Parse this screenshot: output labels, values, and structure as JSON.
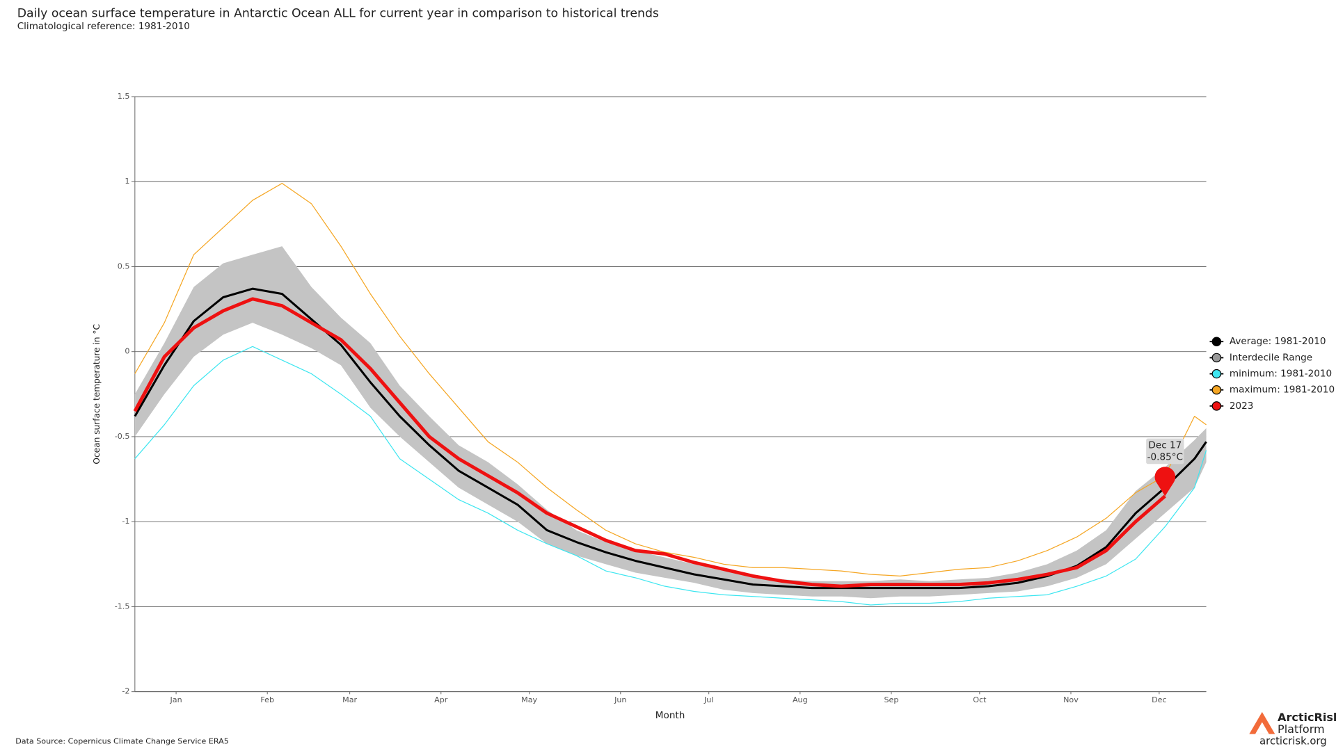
{
  "chart_data": {
    "type": "line",
    "title": "Daily ocean surface temperature in Antarctic Ocean ALL for current year in comparison to historical trends",
    "subtitle": "Climatological reference: 1981-2010",
    "x_label": "Month",
    "y_label": "Ocean surface temperature in °C",
    "source": "Data Source: Copernicus Climate Change Service ERA5",
    "logo": {
      "name_line1": "ArcticRisk",
      "name_line2": "Platform",
      "url": "arcticrisk.org"
    },
    "x": [
      1,
      11,
      21,
      31,
      41,
      51,
      61,
      71,
      81,
      91,
      101,
      111,
      121,
      131,
      141,
      151,
      161,
      171,
      181,
      191,
      201,
      211,
      221,
      231,
      241,
      251,
      261,
      271,
      281,
      291,
      301,
      311,
      321,
      331,
      341,
      351,
      361,
      365
    ],
    "xlim": [
      1,
      365
    ],
    "xticks": [
      {
        "value": 15,
        "label": "Jan"
      },
      {
        "value": 46,
        "label": "Feb"
      },
      {
        "value": 74,
        "label": "Mar"
      },
      {
        "value": 105,
        "label": "Apr"
      },
      {
        "value": 135,
        "label": "May"
      },
      {
        "value": 166,
        "label": "Jun"
      },
      {
        "value": 196,
        "label": "Jul"
      },
      {
        "value": 227,
        "label": "Aug"
      },
      {
        "value": 258,
        "label": "Sep"
      },
      {
        "value": 288,
        "label": "Oct"
      },
      {
        "value": 319,
        "label": "Nov"
      },
      {
        "value": 349,
        "label": "Dec"
      }
    ],
    "ylim": [
      -2,
      1.5
    ],
    "yticks": [
      1.5,
      1,
      0.5,
      0,
      -0.5,
      -1,
      -1.5,
      -2
    ],
    "grid": true,
    "legend": "right",
    "series": [
      {
        "name": "Average: 1981-2010",
        "color": "#000000",
        "values": [
          -0.38,
          -0.08,
          0.18,
          0.32,
          0.37,
          0.34,
          0.19,
          0.04,
          -0.18,
          -0.38,
          -0.55,
          -0.7,
          -0.8,
          -0.9,
          -1.05,
          -1.12,
          -1.18,
          -1.23,
          -1.27,
          -1.31,
          -1.34,
          -1.37,
          -1.38,
          -1.39,
          -1.39,
          -1.39,
          -1.39,
          -1.39,
          -1.39,
          -1.38,
          -1.36,
          -1.32,
          -1.26,
          -1.15,
          -0.95,
          -0.8,
          -0.63,
          -0.53
        ]
      },
      {
        "name": "Interdecile Range",
        "color": "#c4c4c4",
        "marker_color": "#999999",
        "upper": [
          -0.25,
          0.05,
          0.38,
          0.52,
          0.57,
          0.62,
          0.38,
          0.2,
          0.05,
          -0.2,
          -0.38,
          -0.55,
          -0.65,
          -0.78,
          -0.93,
          -1.05,
          -1.12,
          -1.17,
          -1.21,
          -1.25,
          -1.29,
          -1.32,
          -1.34,
          -1.35,
          -1.35,
          -1.35,
          -1.34,
          -1.35,
          -1.34,
          -1.33,
          -1.3,
          -1.25,
          -1.17,
          -1.05,
          -0.82,
          -0.68,
          -0.52,
          -0.45
        ],
        "lower": [
          -0.5,
          -0.25,
          -0.03,
          0.1,
          0.17,
          0.1,
          0.02,
          -0.08,
          -0.33,
          -0.5,
          -0.65,
          -0.8,
          -0.9,
          -1.0,
          -1.13,
          -1.2,
          -1.25,
          -1.3,
          -1.33,
          -1.36,
          -1.4,
          -1.42,
          -1.43,
          -1.44,
          -1.44,
          -1.45,
          -1.44,
          -1.44,
          -1.43,
          -1.42,
          -1.41,
          -1.38,
          -1.33,
          -1.25,
          -1.1,
          -0.95,
          -0.8,
          -0.65
        ]
      },
      {
        "name": "minimum: 1981-2010",
        "color": "#3ee6f0",
        "values": [
          -0.63,
          -0.43,
          -0.2,
          -0.05,
          0.03,
          -0.05,
          -0.13,
          -0.25,
          -0.38,
          -0.63,
          -0.75,
          -0.87,
          -0.95,
          -1.05,
          -1.13,
          -1.2,
          -1.29,
          -1.33,
          -1.38,
          -1.41,
          -1.43,
          -1.44,
          -1.45,
          -1.46,
          -1.47,
          -1.49,
          -1.48,
          -1.48,
          -1.47,
          -1.45,
          -1.44,
          -1.43,
          -1.38,
          -1.32,
          -1.22,
          -1.03,
          -0.8,
          -0.58
        ]
      },
      {
        "name": "maximum: 1981-2010",
        "color": "#f5a623",
        "values": [
          -0.13,
          0.17,
          0.57,
          0.73,
          0.89,
          0.99,
          0.87,
          0.62,
          0.34,
          0.09,
          -0.13,
          -0.33,
          -0.53,
          -0.65,
          -0.8,
          -0.93,
          -1.05,
          -1.13,
          -1.18,
          -1.21,
          -1.25,
          -1.27,
          -1.27,
          -1.28,
          -1.29,
          -1.31,
          -1.32,
          -1.3,
          -1.28,
          -1.27,
          -1.23,
          -1.17,
          -1.09,
          -0.98,
          -0.83,
          -0.73,
          -0.38,
          -0.43
        ]
      },
      {
        "name": "2023",
        "color": "#ee1111",
        "values": [
          -0.35,
          -0.03,
          0.14,
          0.24,
          0.31,
          0.27,
          0.17,
          0.07,
          -0.1,
          -0.3,
          -0.5,
          -0.63,
          -0.73,
          -0.83,
          -0.95,
          -1.03,
          -1.11,
          -1.17,
          -1.19,
          -1.24,
          -1.28,
          -1.32,
          -1.35,
          -1.37,
          -1.38,
          -1.37,
          -1.37,
          -1.37,
          -1.37,
          -1.36,
          -1.34,
          -1.31,
          -1.27,
          -1.17,
          -1.0,
          -0.85,
          null,
          null
        ]
      }
    ],
    "annotation": {
      "x": 351,
      "label": "Dec 17",
      "value": -0.85,
      "value_label": "-0.85°C"
    }
  }
}
